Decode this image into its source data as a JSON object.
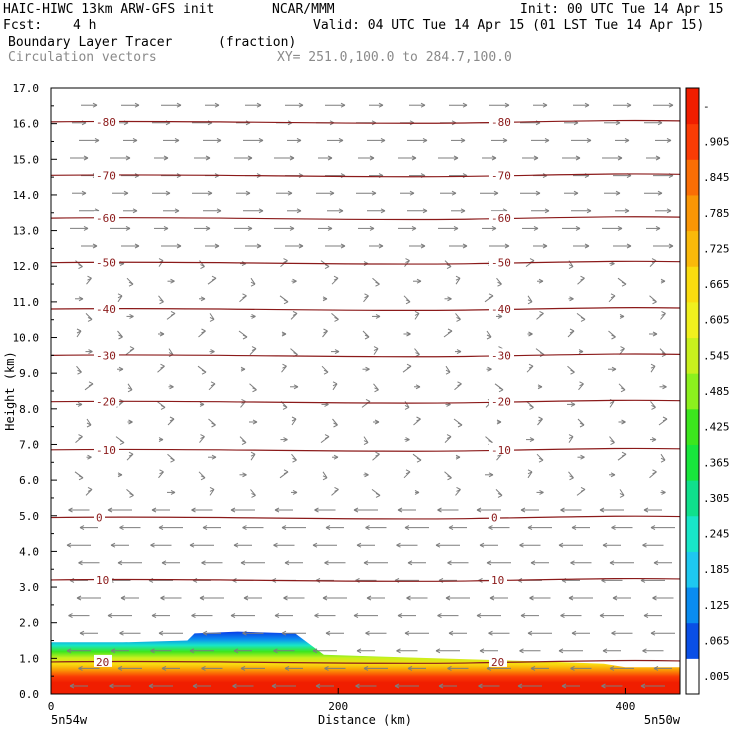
{
  "header": {
    "model": "HAIC-HIWC 13km ARW-GFS init",
    "org": "NCAR/MMM",
    "init": "Init: 00 UTC Tue 14 Apr 15",
    "fcst_label": "Fcst:",
    "fcst_value": "4 h",
    "valid": "Valid: 04 UTC Tue 14 Apr 15 (01 LST Tue 14 Apr 15)",
    "field": "Boundary Layer Tracer",
    "field_units": "(fraction)",
    "overlay": "Circulation vectors",
    "xy": "XY= 251.0,100.0 to 284.7,100.0"
  },
  "chart_data": {
    "type": "heatmap",
    "ylabel": "Height (km)",
    "xlabel": "Distance (km)",
    "yticks": [
      "0.0",
      "1.0",
      "2.0",
      "3.0",
      "4.0",
      "5.0",
      "6.0",
      "7.0",
      "8.0",
      "9.0",
      "10.0",
      "11.0",
      "12.0",
      "13.0",
      "14.0",
      "15.0",
      "16.0",
      "17.0"
    ],
    "ylim": [
      0,
      17
    ],
    "xticks": [
      "0",
      "200",
      "400"
    ],
    "xlim": [
      0,
      438
    ],
    "x_end_labels": [
      "5n54w",
      "5n50w"
    ],
    "colorbar": {
      "labels": [
        ".005",
        ".065",
        ".125",
        ".185",
        ".245",
        ".305",
        ".365",
        ".425",
        ".485",
        ".545",
        ".605",
        ".665",
        ".725",
        ".785",
        ".845",
        ".905",
        "-"
      ],
      "colors": [
        "#ffffff",
        "#0a4fe6",
        "#0a8cf0",
        "#1ec8f0",
        "#18e6c8",
        "#10e08c",
        "#18e63c",
        "#3ce61e",
        "#8cf01e",
        "#c8f01e",
        "#f0f01e",
        "#fadc10",
        "#fab90a",
        "#fa9605",
        "#fa6e05",
        "#fa3c05",
        "#f01e00"
      ]
    },
    "tracer_top_km": [
      [
        0,
        1.45
      ],
      [
        50,
        1.45
      ],
      [
        95,
        1.5
      ],
      [
        100,
        1.7
      ],
      [
        130,
        1.75
      ],
      [
        170,
        1.7
      ],
      [
        190,
        1.1
      ],
      [
        230,
        1.05
      ],
      [
        270,
        1.0
      ],
      [
        310,
        0.95
      ],
      [
        350,
        0.9
      ],
      [
        385,
        0.85
      ],
      [
        400,
        0.75
      ],
      [
        438,
        0.75
      ]
    ],
    "isotherms": [
      {
        "label": "-80",
        "km": 16.05
      },
      {
        "label": "-70",
        "km": 14.55
      },
      {
        "label": "-60",
        "km": 13.35
      },
      {
        "label": "-50",
        "km": 12.1
      },
      {
        "label": "-40",
        "km": 10.8
      },
      {
        "label": "-30",
        "km": 9.5
      },
      {
        "label": "-20",
        "km": 8.2
      },
      {
        "label": "-10",
        "km": 6.85
      },
      {
        "label": "0",
        "km": 4.95
      },
      {
        "label": "10",
        "km": 3.2
      },
      {
        "label": "20",
        "km": 0.9
      }
    ],
    "grid": false,
    "legend": "right colorbar"
  }
}
